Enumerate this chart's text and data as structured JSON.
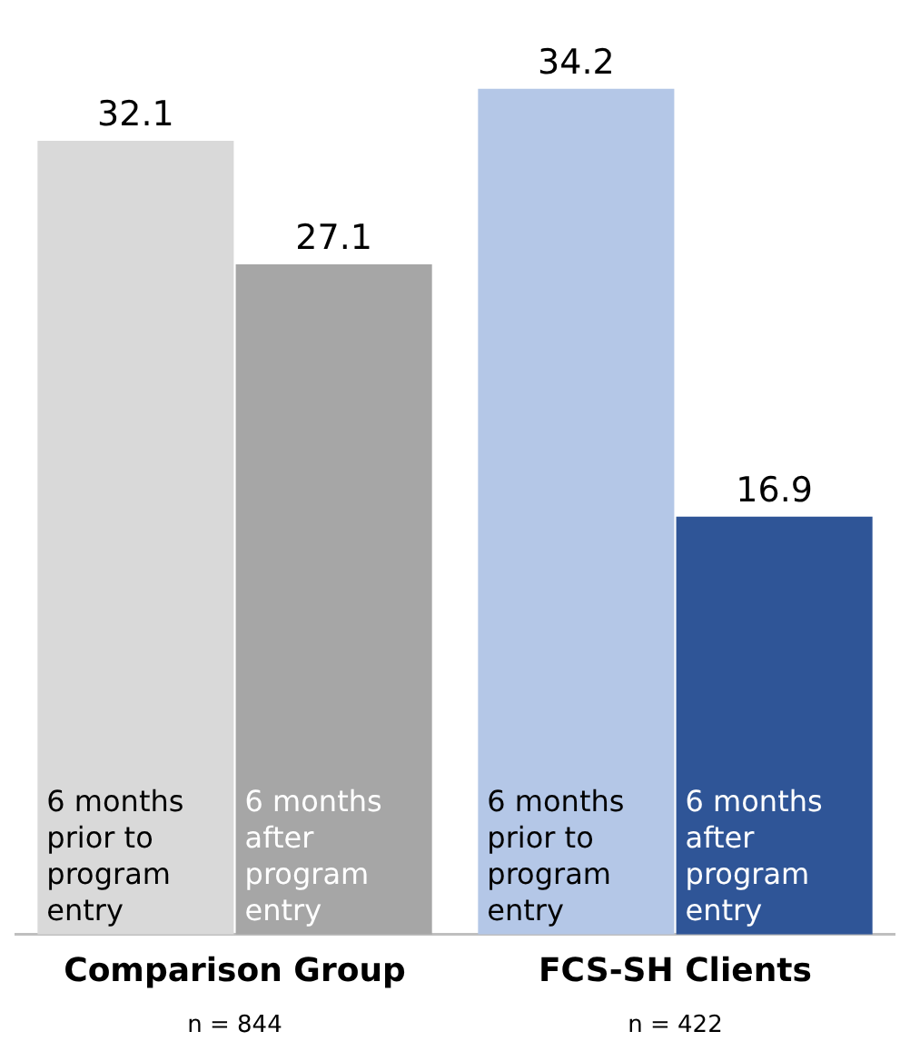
{
  "chart_data": {
    "type": "bar",
    "categories": [
      "Comparison Group",
      "FCS-SH Clients"
    ],
    "series": [
      {
        "name": "6 months prior to program entry",
        "colors": [
          "#d9d9d9",
          "#b4c7e7"
        ],
        "values": [
          32.1,
          34.2
        ]
      },
      {
        "name": "6 months after program entry",
        "colors": [
          "#a6a6a6",
          "#2f5597"
        ],
        "values": [
          27.1,
          16.9
        ]
      }
    ],
    "data_labels": true,
    "legend": false,
    "grid": false,
    "annotations": [
      "n = 844",
      "n = 422"
    ]
  }
}
